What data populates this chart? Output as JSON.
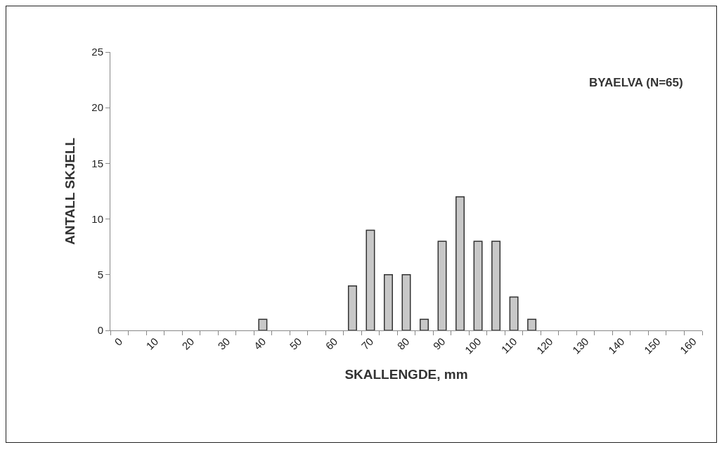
{
  "chart_data": {
    "type": "bar",
    "xlabel": "SKALLENGDE, mm",
    "ylabel": "ANTALL SKJELL",
    "annotations": [
      "BYAELVA (N=65)"
    ],
    "categories": [
      "0",
      null,
      "10",
      null,
      "20",
      null,
      "30",
      null,
      "40",
      null,
      "50",
      null,
      "60",
      null,
      "70",
      null,
      "80",
      null,
      "90",
      null,
      "100",
      null,
      "110",
      null,
      "120",
      null,
      "130",
      null,
      "140",
      null,
      "150",
      null,
      "160"
    ],
    "values": [
      0,
      0,
      0,
      0,
      0,
      0,
      0,
      0,
      1,
      0,
      0,
      0,
      0,
      4,
      9,
      5,
      5,
      1,
      8,
      12,
      8,
      8,
      3,
      1,
      0,
      0,
      0,
      0,
      0,
      0,
      0,
      0,
      0
    ],
    "color": "#c8c8c8",
    "ylim": [
      0,
      25
    ],
    "yticks": [
      0,
      5,
      10,
      15,
      20,
      25
    ],
    "grid": false
  }
}
